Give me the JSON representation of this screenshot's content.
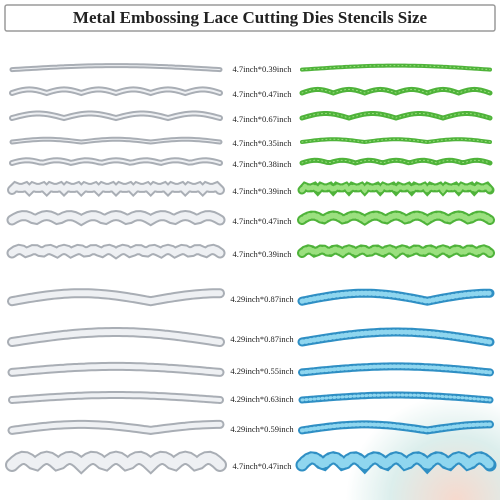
{
  "header": {
    "title": "Metal Embossing Lace Cutting Dies Stencils  Size"
  },
  "items": [
    {
      "size": "4.7inch*0.39inch"
    },
    {
      "size": "4.7inch*0.47inch"
    },
    {
      "size": "4.7inch*0.67inch"
    },
    {
      "size": "4.7inch*0.35inch"
    },
    {
      "size": "4.7inch*0.38inch"
    },
    {
      "size": "4.7inch*0.39inch"
    },
    {
      "size": "4.7inch*0.47inch"
    },
    {
      "size": "4.7inch*0.39inch"
    },
    {
      "size": "4.29inch*0.87inch"
    },
    {
      "size": "4.29inch*0.87inch"
    },
    {
      "size": "4.29inch*0.55inch"
    },
    {
      "size": "4.29inch*0.63inch"
    },
    {
      "size": "4.29inch*0.59inch"
    },
    {
      "size": "4.7inch*0.47inch"
    }
  ]
}
